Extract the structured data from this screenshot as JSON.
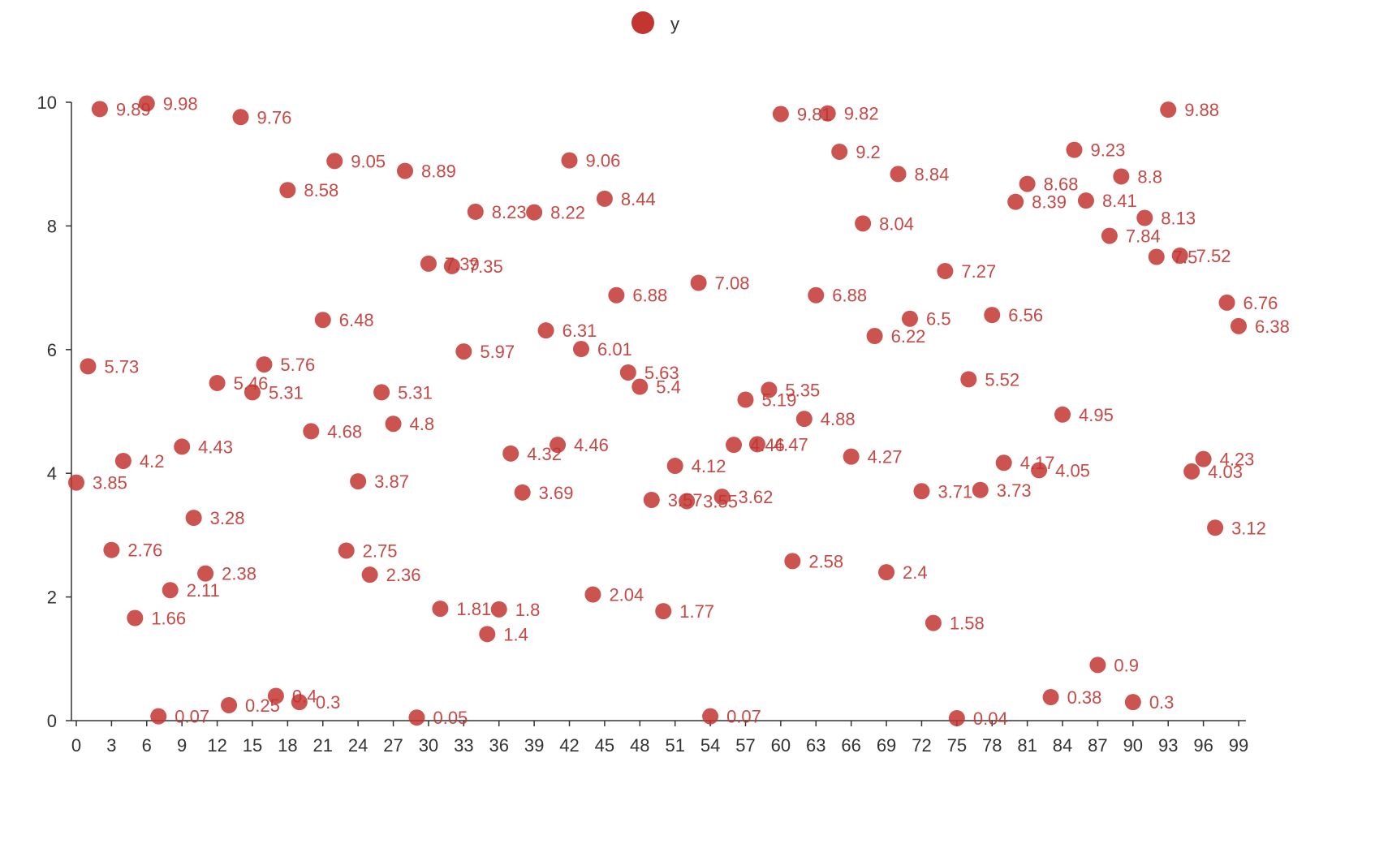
{
  "chart_data": {
    "type": "scatter",
    "title": "",
    "xlabel": "",
    "ylabel": "",
    "legend": {
      "position": "top-center"
    },
    "color": "#c23531",
    "grid": false,
    "xlim": [
      0,
      99
    ],
    "ylim": [
      0,
      10
    ],
    "x_ticks": [
      "0",
      "3",
      "6",
      "9",
      "12",
      "15",
      "18",
      "21",
      "24",
      "27",
      "30",
      "33",
      "36",
      "39",
      "42",
      "45",
      "48",
      "51",
      "54",
      "57",
      "60",
      "63",
      "66",
      "69",
      "72",
      "75",
      "78",
      "81",
      "84",
      "87",
      "90",
      "93",
      "96",
      "99"
    ],
    "y_ticks": [
      "0",
      "2",
      "4",
      "6",
      "8",
      "10"
    ],
    "series": [
      {
        "name": "y",
        "x": [
          0,
          1,
          2,
          3,
          4,
          5,
          6,
          7,
          8,
          9,
          10,
          11,
          12,
          13,
          14,
          15,
          16,
          17,
          18,
          19,
          20,
          21,
          22,
          23,
          24,
          25,
          26,
          27,
          28,
          29,
          30,
          31,
          32,
          33,
          34,
          35,
          36,
          37,
          38,
          39,
          40,
          41,
          42,
          43,
          44,
          45,
          46,
          47,
          48,
          49,
          50,
          51,
          52,
          53,
          54,
          55,
          56,
          57,
          58,
          59,
          60,
          61,
          62,
          63,
          64,
          65,
          66,
          67,
          68,
          69,
          70,
          71,
          72,
          73,
          74,
          75,
          76,
          77,
          78,
          79,
          80,
          81,
          82,
          83,
          84,
          85,
          86,
          87,
          88,
          89,
          90,
          91,
          92,
          93,
          94,
          95,
          96,
          97,
          98,
          99
        ],
        "y": [
          3.85,
          5.73,
          9.89,
          2.76,
          4.2,
          1.66,
          9.98,
          0.07,
          2.11,
          4.43,
          3.28,
          2.38,
          5.46,
          0.25,
          9.76,
          5.31,
          5.76,
          0.4,
          8.58,
          0.3,
          4.68,
          6.48,
          9.05,
          2.75,
          3.87,
          2.36,
          5.31,
          4.8,
          8.89,
          0.05,
          7.39,
          1.81,
          7.35,
          5.97,
          8.23,
          1.4,
          1.8,
          4.32,
          3.69,
          8.22,
          6.31,
          4.46,
          9.06,
          6.01,
          2.04,
          8.44,
          6.88,
          5.63,
          5.4,
          3.57,
          1.77,
          4.12,
          3.55,
          7.08,
          0.07,
          3.62,
          4.46,
          5.19,
          4.47,
          5.35,
          9.81,
          2.58,
          4.88,
          6.88,
          9.82,
          9.2,
          4.27,
          8.04,
          6.22,
          2.4,
          8.84,
          6.5,
          3.71,
          1.58,
          7.27,
          0.04,
          5.52,
          3.73,
          6.56,
          4.17,
          8.39,
          8.68,
          4.05,
          0.38,
          4.95,
          9.23,
          8.41,
          0.9,
          7.84,
          8.8,
          0.3,
          8.13,
          7.5,
          9.88,
          7.52,
          4.03,
          4.23,
          3.12,
          6.76,
          6.38
        ]
      }
    ]
  }
}
